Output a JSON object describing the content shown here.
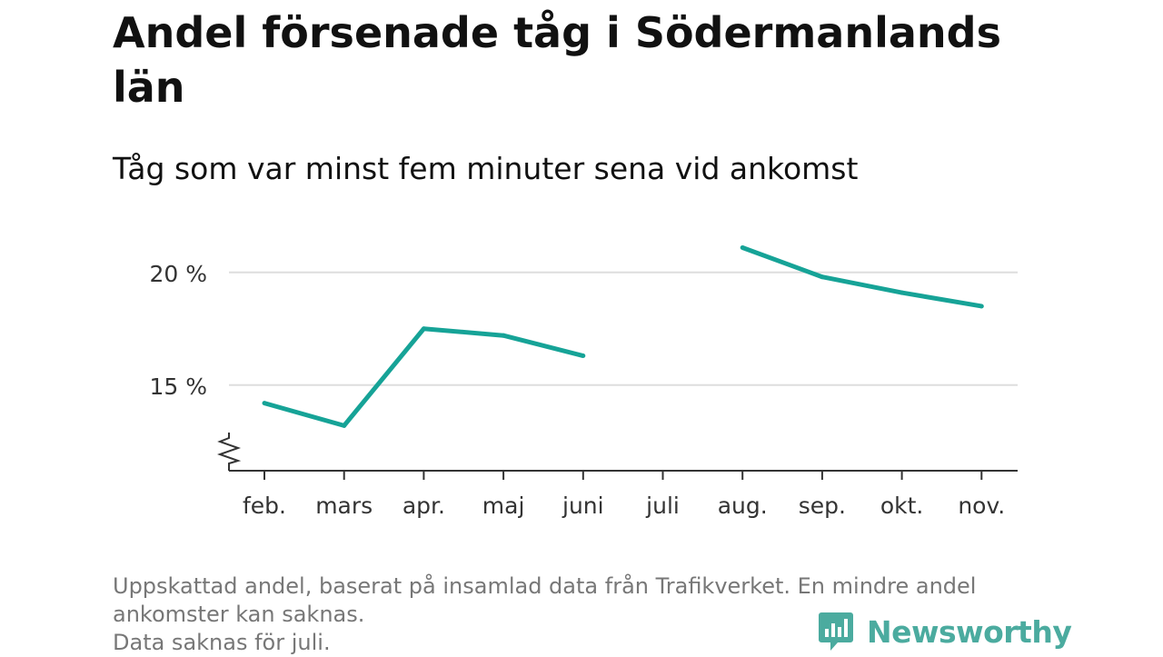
{
  "title": "Andel försenade tåg i Södermanlands län",
  "subtitle": "Tåg som var minst fem minuter sena vid ankomst",
  "footer": {
    "line1": "Uppskattad andel, baserat på insamlad data från Trafikverket. En mindre andel",
    "line2": "ankomster kan saknas.",
    "line3": "Data saknas för juli."
  },
  "brand": {
    "name": "Newsworthy",
    "icon": "newsworthy-logo-icon",
    "color": "#4bab9f"
  },
  "chart_data": {
    "type": "line",
    "categories": [
      "feb.",
      "mars",
      "apr.",
      "maj",
      "juni",
      "juli",
      "aug.",
      "sep.",
      "okt.",
      "nov."
    ],
    "values": [
      14.2,
      13.2,
      17.5,
      17.2,
      16.3,
      null,
      21.1,
      19.8,
      19.1,
      18.5
    ],
    "ylim": [
      11.2,
      21.2
    ],
    "yticks": [
      15,
      20
    ],
    "ytick_labels": [
      "15 %",
      "20 %"
    ],
    "y_axis_break": true,
    "grid": true,
    "line_color": "#16a397",
    "grid_color": "#dddddd",
    "axis_color": "#333333"
  }
}
